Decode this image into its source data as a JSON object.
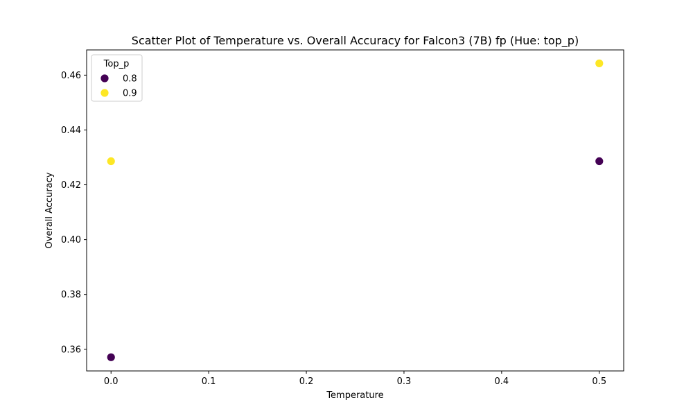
{
  "chart_data": {
    "type": "scatter",
    "title": "Scatter Plot of Temperature vs. Overall Accuracy for Falcon3 (7B) fp (Hue: top_p)",
    "xlabel": "Temperature",
    "ylabel": "Overall Accuracy",
    "xlim": [
      -0.025,
      0.525
    ],
    "ylim": [
      0.3521,
      0.4692
    ],
    "x_ticks": [
      0.0,
      0.1,
      0.2,
      0.3,
      0.4,
      0.5
    ],
    "x_tick_labels": [
      "0.0",
      "0.1",
      "0.2",
      "0.3",
      "0.4",
      "0.5"
    ],
    "y_ticks": [
      0.36,
      0.38,
      0.4,
      0.42,
      0.44,
      0.46
    ],
    "y_tick_labels": [
      "0.36",
      "0.38",
      "0.40",
      "0.42",
      "0.44",
      "0.46"
    ],
    "grid": false,
    "legend": {
      "title": "Top_p",
      "placement": "top-left"
    },
    "series": [
      {
        "name": "0.8",
        "color": "#440154",
        "points": [
          {
            "x": 0.0,
            "y": 0.3571
          },
          {
            "x": 0.5,
            "y": 0.4286
          }
        ]
      },
      {
        "name": "0.9",
        "color": "#fde725",
        "points": [
          {
            "x": 0.0,
            "y": 0.4286
          },
          {
            "x": 0.5,
            "y": 0.4643
          }
        ]
      }
    ]
  }
}
